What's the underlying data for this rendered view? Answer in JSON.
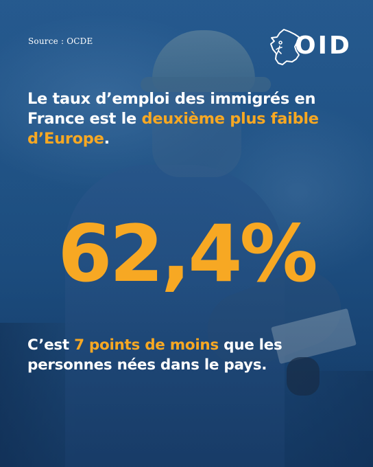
{
  "source": "Source : OCDE",
  "logo": {
    "text": "OID",
    "icon": "france-map-outline-icon"
  },
  "headline": {
    "part1": "Le taux d’emploi des immigrés en France est le ",
    "highlight": "deuxième plus faible d’Europe",
    "part2": "."
  },
  "stat": {
    "value": "62,4%"
  },
  "subline": {
    "part1": "C’est ",
    "highlight": "7 points de moins",
    "part2": " que les personnes nées dans le pays."
  },
  "colors": {
    "accent": "#f7a823",
    "background": "#245a8e",
    "text": "#ffffff"
  }
}
